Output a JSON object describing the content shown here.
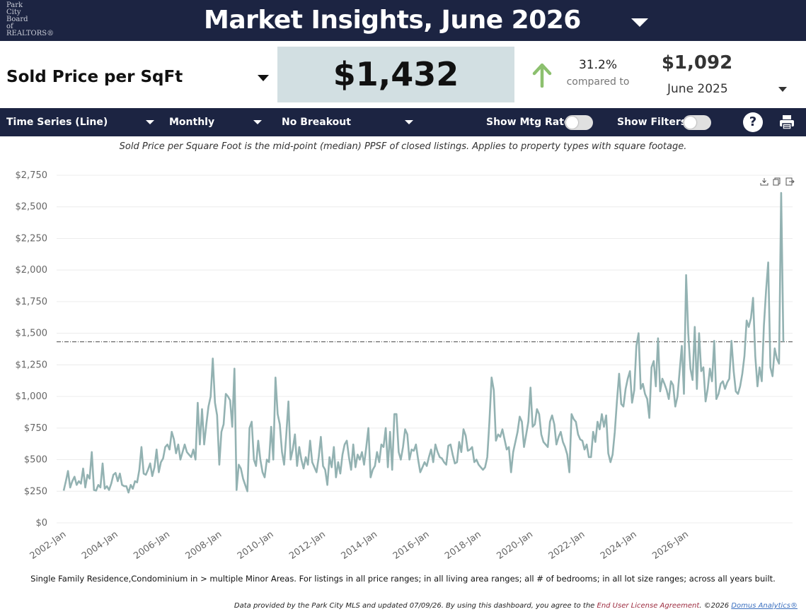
{
  "header": {
    "logo_lines": [
      "Park",
      "City",
      "Board",
      "of",
      "REALTORS®"
    ],
    "title": "Market Insights, June 2026"
  },
  "kpi": {
    "metric_label": "Sold Price per SqFt",
    "value": "$1,432",
    "change_pct": "31.2%",
    "compared_label": "compared to",
    "prior_value": "$1,092",
    "prior_period": "June 2025",
    "arrow_color": "#8cc06e"
  },
  "toolbar": {
    "chart_type": "Time Series (Line)",
    "interval": "Monthly",
    "breakout": "No Breakout",
    "show_mtg_rate": "Show Mtg Rate:",
    "show_filters": "Show Filters:",
    "help": "?"
  },
  "description": "Sold Price per Square Foot is the mid-point (median) PPSF of closed listings. Applies to property types with square footage.",
  "filters_note": "Single Family Residence,Condominium in > multiple Minor Areas. For listings in all price ranges; in all living area ranges; all # of bedrooms; in all lot size ranges; across all years built.",
  "footer": {
    "text_pre": "Data provided by the Park City MLS and updated 07/09/26.  By using this dashboard, you agree to the ",
    "eula": "End User License Agreement",
    "text_mid": ".  ©2026 ",
    "brand": "Domus Analytics®"
  },
  "chart_data": {
    "type": "line",
    "title": "",
    "xlabel": "",
    "ylabel": "",
    "ylim": [
      0,
      2750
    ],
    "yticks": [
      0,
      250,
      500,
      750,
      1000,
      1250,
      1500,
      1750,
      2000,
      2250,
      2500,
      2750
    ],
    "ytick_labels": [
      "$0",
      "$250",
      "$500",
      "$750",
      "$1,000",
      "$1,250",
      "$1,500",
      "$1,750",
      "$2,000",
      "$2,250",
      "$2,500",
      "$2,750"
    ],
    "xtick_labels": [
      "2002-Jan",
      "2004-Jan",
      "2006-Jan",
      "2008-Jan",
      "2010-Jan",
      "2012-Jan",
      "2014-Jan",
      "2016-Jan",
      "2018-Jan",
      "2020-Jan",
      "2022-Jan",
      "2024-Jan",
      "2026-Jan"
    ],
    "x_start": "2002-Jan",
    "x_end": "2026-Jun",
    "grid": "horizontal",
    "line_color": "#93b2b2",
    "reference_line": {
      "value": 1432,
      "style": "dash-dot"
    },
    "series": [
      {
        "values": [
          255,
          330,
          410,
          280,
          330,
          365,
          300,
          330,
          310,
          430,
          280,
          380,
          350,
          560,
          260,
          255,
          300,
          280,
          470,
          270,
          290,
          260,
          310,
          380,
          395,
          330,
          390,
          300,
          290,
          290,
          240,
          300,
          270,
          330,
          320,
          420,
          600,
          390,
          380,
          420,
          470,
          370,
          440,
          580,
          400,
          480,
          510,
          600,
          620,
          580,
          720,
          660,
          550,
          620,
          500,
          560,
          620,
          560,
          540,
          520,
          580,
          500,
          950,
          620,
          900,
          620,
          780,
          920,
          1000,
          1300,
          950,
          850,
          460,
          720,
          780,
          1020,
          1000,
          970,
          760,
          1220,
          260,
          460,
          430,
          350,
          300,
          250,
          750,
          800,
          500,
          450,
          650,
          500,
          400,
          360,
          500,
          480,
          760,
          500,
          1150,
          860,
          780,
          560,
          460,
          700,
          960,
          500,
          580,
          700,
          450,
          600,
          500,
          430,
          520,
          460,
          650,
          480,
          440,
          400,
          520,
          680,
          450,
          420,
          300,
          520,
          440,
          600,
          360,
          480,
          390,
          540,
          620,
          650,
          520,
          420,
          620,
          440,
          540,
          500,
          560,
          460,
          600,
          750,
          360,
          420,
          450,
          560,
          480,
          620,
          600,
          750,
          440,
          720,
          420,
          860,
          860,
          560,
          500,
          600,
          740,
          700,
          500,
          580,
          570,
          620,
          500,
          400,
          440,
          480,
          450,
          520,
          580,
          480,
          620,
          560,
          520,
          510,
          480,
          460,
          610,
          620,
          540,
          470,
          480,
          640,
          560,
          740,
          690,
          570,
          580,
          600,
          480,
          500,
          460,
          440,
          420,
          440,
          520,
          800,
          1150,
          1050,
          650,
          700,
          680,
          740,
          660,
          580,
          600,
          400,
          560,
          640,
          720,
          840,
          800,
          600,
          700,
          800,
          1070,
          760,
          780,
          900,
          860,
          700,
          640,
          620,
          600,
          800,
          850,
          780,
          620,
          680,
          720,
          640,
          600,
          540,
          400,
          860,
          820,
          800,
          700,
          660,
          650,
          580,
          620,
          520,
          520,
          720,
          640,
          800,
          740,
          860,
          760,
          850,
          550,
          480,
          540,
          720,
          960,
          1180,
          940,
          920,
          1060,
          1140,
          1200,
          950,
          1050,
          1400,
          1500,
          1060,
          1100,
          1020,
          980,
          830,
          1230,
          1280,
          1080,
          1460,
          1040,
          1140,
          1100,
          1050,
          980,
          1120,
          1090,
          920,
          1000,
          1200,
          1400,
          1020,
          1960,
          1500,
          1220,
          1130,
          1550,
          1060,
          1500,
          1200,
          1230,
          960,
          1060,
          1220,
          1120,
          1440,
          980,
          1020,
          1100,
          1120,
          1060,
          1110,
          1140,
          1440,
          1200,
          1040,
          1020,
          1080,
          1180,
          1320,
          1600,
          1550,
          1620,
          1780,
          1320,
          1080,
          1230,
          1120,
          1560,
          1840,
          2060,
          1230,
          1160,
          1380,
          1300,
          1260,
          2610,
          1432
        ]
      }
    ]
  }
}
